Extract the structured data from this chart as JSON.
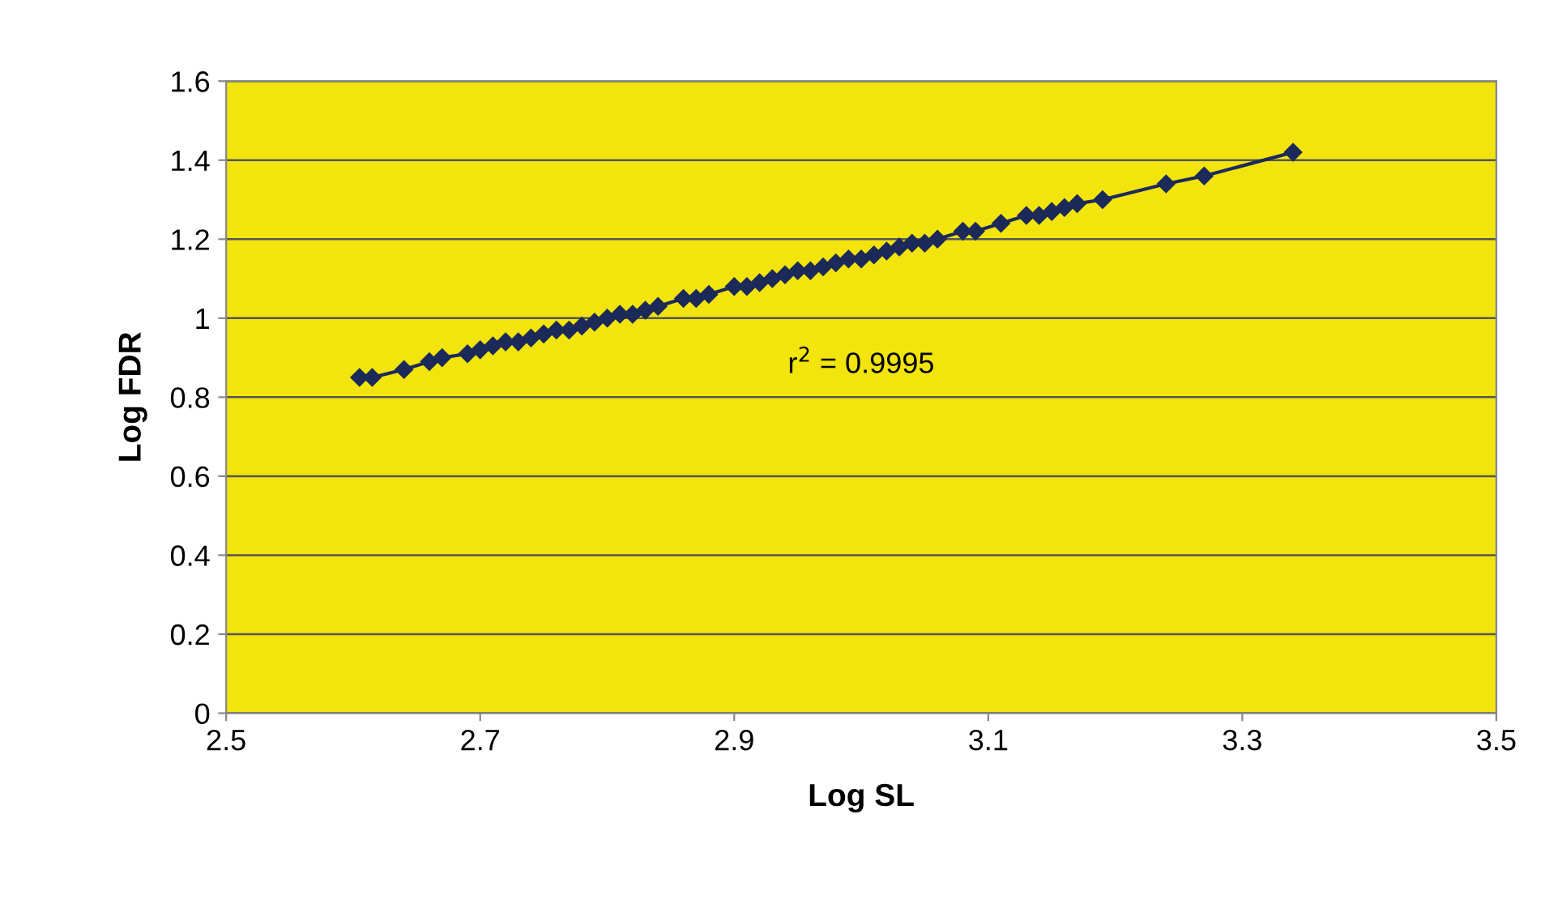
{
  "chart_data": {
    "type": "line",
    "xlabel": "Log SL",
    "ylabel": "Log FDR",
    "x": [
      2.605,
      2.615,
      2.64,
      2.66,
      2.67,
      2.69,
      2.7,
      2.71,
      2.72,
      2.73,
      2.74,
      2.75,
      2.76,
      2.77,
      2.78,
      2.79,
      2.8,
      2.81,
      2.82,
      2.83,
      2.84,
      2.86,
      2.87,
      2.88,
      2.9,
      2.91,
      2.92,
      2.93,
      2.94,
      2.95,
      2.96,
      2.97,
      2.98,
      2.99,
      3.0,
      3.01,
      3.02,
      3.03,
      3.04,
      3.05,
      3.06,
      3.08,
      3.09,
      3.11,
      3.13,
      3.14,
      3.15,
      3.16,
      3.17,
      3.19,
      3.24,
      3.27,
      3.34
    ],
    "series": [
      {
        "color": "#1c2a5a",
        "values": [
          0.85,
          0.85,
          0.87,
          0.89,
          0.9,
          0.91,
          0.92,
          0.93,
          0.94,
          0.94,
          0.95,
          0.96,
          0.97,
          0.97,
          0.98,
          0.99,
          1.0,
          1.01,
          1.01,
          1.02,
          1.03,
          1.05,
          1.05,
          1.06,
          1.08,
          1.08,
          1.09,
          1.1,
          1.11,
          1.12,
          1.12,
          1.13,
          1.14,
          1.15,
          1.15,
          1.16,
          1.17,
          1.18,
          1.19,
          1.19,
          1.2,
          1.22,
          1.22,
          1.24,
          1.26,
          1.26,
          1.27,
          1.28,
          1.29,
          1.3,
          1.34,
          1.36,
          1.42
        ]
      }
    ],
    "marker": "diamond",
    "line_style": "solid",
    "xlim": [
      2.5,
      3.5
    ],
    "xticks": [
      2.5,
      2.7,
      2.9,
      3.1,
      3.3,
      3.5
    ],
    "ylim": [
      0,
      1.6
    ],
    "yticks": [
      0,
      0.2,
      0.4,
      0.6,
      0.8,
      1,
      1.2,
      1.4,
      1.6
    ],
    "grid": "y",
    "legend": false,
    "annotations": [
      "r$^{2}$ = 0.9995"
    ]
  }
}
